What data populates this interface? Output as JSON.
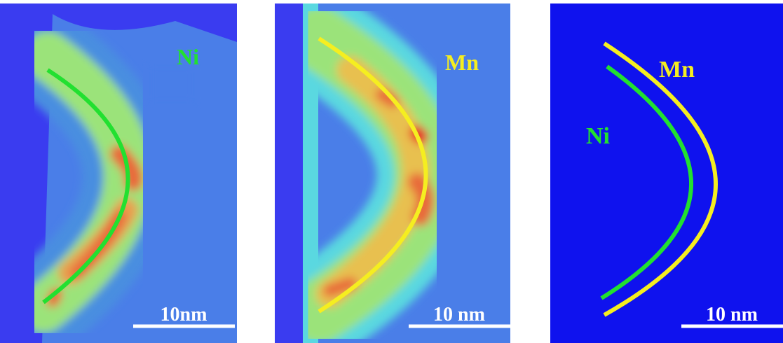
{
  "panels": [
    {
      "labels": [
        "Ni"
      ],
      "scale_bar": "10nm"
    },
    {
      "labels": [
        "Mn"
      ],
      "scale_bar": "10 nm"
    },
    {
      "labels": [
        "Mn",
        "Ni"
      ],
      "scale_bar": "10 nm"
    }
  ]
}
